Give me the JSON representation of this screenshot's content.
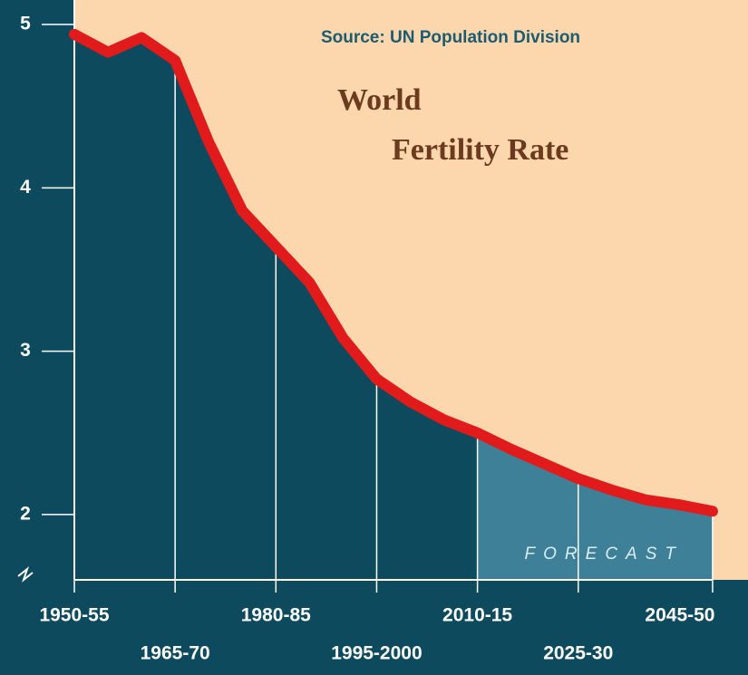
{
  "chart_data": {
    "type": "area-line",
    "title": [
      "World",
      "Fertility Rate"
    ],
    "source": "Source: UN Population Division",
    "annotation": "FORECAST",
    "categories": [
      "1950-55",
      null,
      null,
      "1965-70",
      null,
      null,
      "1980-85",
      null,
      null,
      "1995-2000",
      null,
      null,
      "2010-15",
      null,
      null,
      "2025-30",
      null,
      null,
      null,
      "2045-50"
    ],
    "series": [
      {
        "color": "#e11b1b",
        "values": [
          4.94,
          4.83,
          4.92,
          4.78,
          4.28,
          3.86,
          3.64,
          3.42,
          3.08,
          2.83,
          2.69,
          2.58,
          2.5,
          2.4,
          2.31,
          2.22,
          2.15,
          2.09,
          2.06,
          2.02
        ],
        "forecast": [
          false,
          false,
          false,
          false,
          false,
          false,
          false,
          false,
          false,
          false,
          false,
          false,
          true,
          true,
          true,
          true,
          true,
          true,
          true,
          true
        ]
      }
    ],
    "ylim": [
      1.6,
      5.15
    ],
    "yticks": [
      2,
      3,
      4,
      5
    ],
    "colors": {
      "background": "#0e4a5e",
      "plot": "#fcd6ac",
      "forecast": "#3d8098"
    }
  }
}
